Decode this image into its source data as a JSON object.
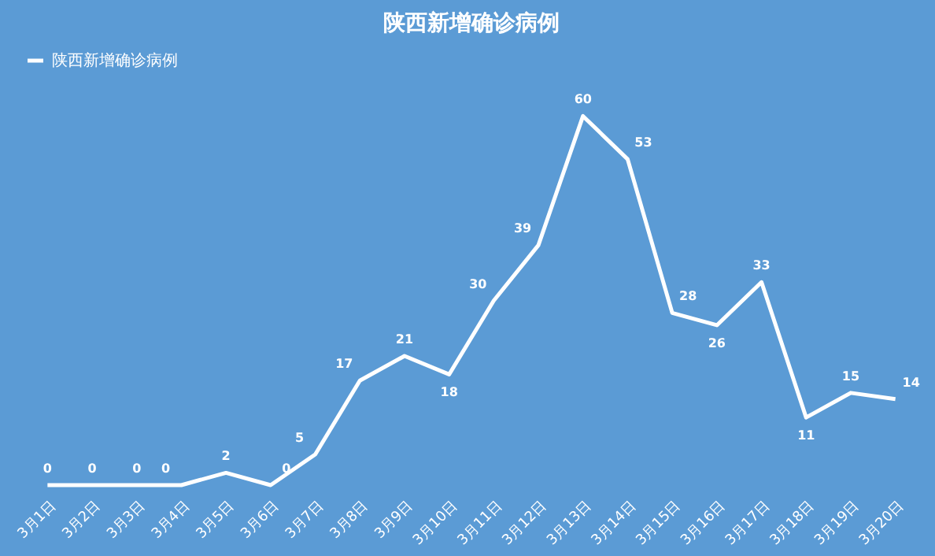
{
  "chart_data": {
    "type": "line",
    "title": "陕西新增确诊病例",
    "categories": [
      "3月1日",
      "3月2日",
      "3月3日",
      "3月4日",
      "3月5日",
      "3月6日",
      "3月7日",
      "3月8日",
      "3月9日",
      "3月10日",
      "3月11日",
      "3月12日",
      "3月13日",
      "3月14日",
      "3月15日",
      "3月16日",
      "3月17日",
      "3月18日",
      "3月19日",
      "3月20日"
    ],
    "series": [
      {
        "name": "陕西新增确诊病例",
        "color": "#ffffff",
        "values": [
          0,
          0,
          0,
          0,
          2,
          0,
          5,
          17,
          21,
          18,
          30,
          39,
          60,
          53,
          28,
          26,
          33,
          11,
          15,
          14
        ]
      }
    ],
    "data_labels": true,
    "legend": "top",
    "line_style": "solid",
    "tick_labels": "x"
  }
}
